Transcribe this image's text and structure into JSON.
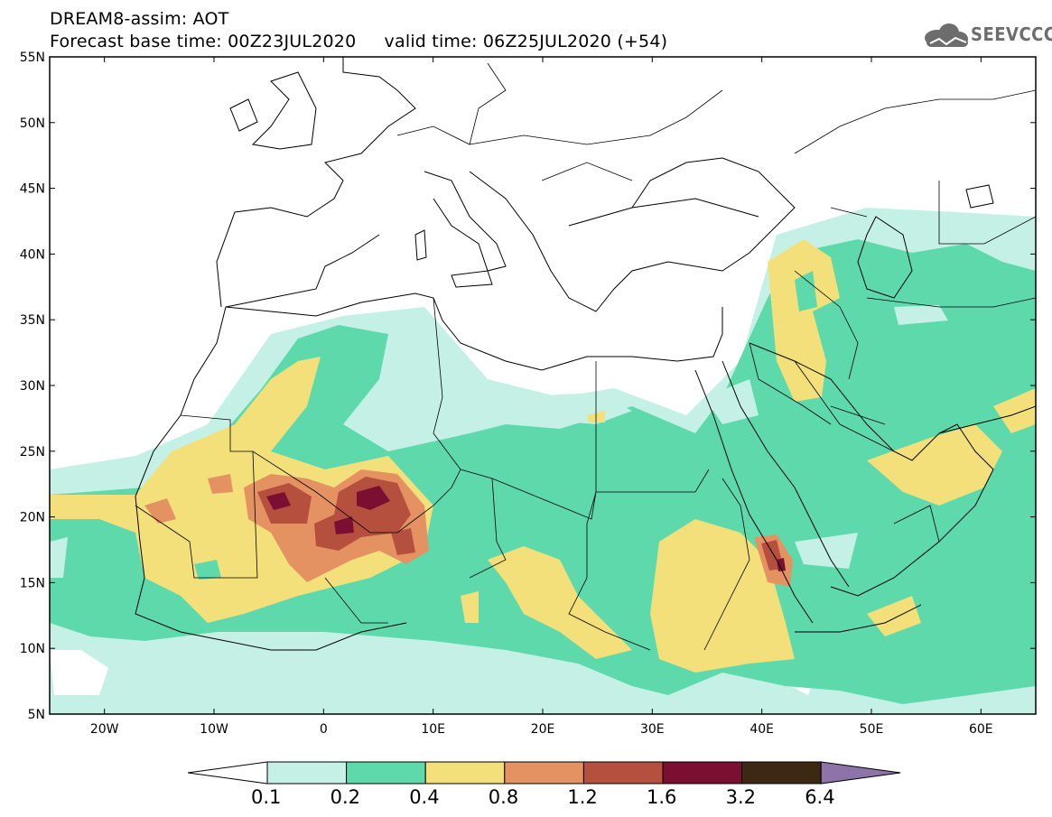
{
  "header": {
    "line1": "DREAM8-assim: AOT",
    "line2": "Forecast base time: 00Z23JUL2020     valid time: 06Z25JUL2020 (+54)"
  },
  "logo": {
    "text": "SEEVCCC",
    "icon": "cloud-logo-icon"
  },
  "map": {
    "lon_range": [
      -25,
      65
    ],
    "lat_range": [
      5,
      55
    ],
    "lat_ticks": [
      "55N",
      "50N",
      "45N",
      "40N",
      "35N",
      "30N",
      "25N",
      "20N",
      "15N",
      "10N",
      "5N"
    ],
    "lon_ticks": [
      "20W",
      "10W",
      "0",
      "10E",
      "20E",
      "30E",
      "40E",
      "50E",
      "60E"
    ]
  },
  "colorbar": {
    "labels": [
      "0.1",
      "0.2",
      "0.4",
      "0.8",
      "1.2",
      "1.6",
      "3.2",
      "6.4"
    ],
    "colors": [
      "#ffffff",
      "#c4f0e6",
      "#5ed9ac",
      "#f3e07a",
      "#e59263",
      "#b5503e",
      "#7a0f32",
      "#3d2814",
      "#8e73a8"
    ]
  }
}
